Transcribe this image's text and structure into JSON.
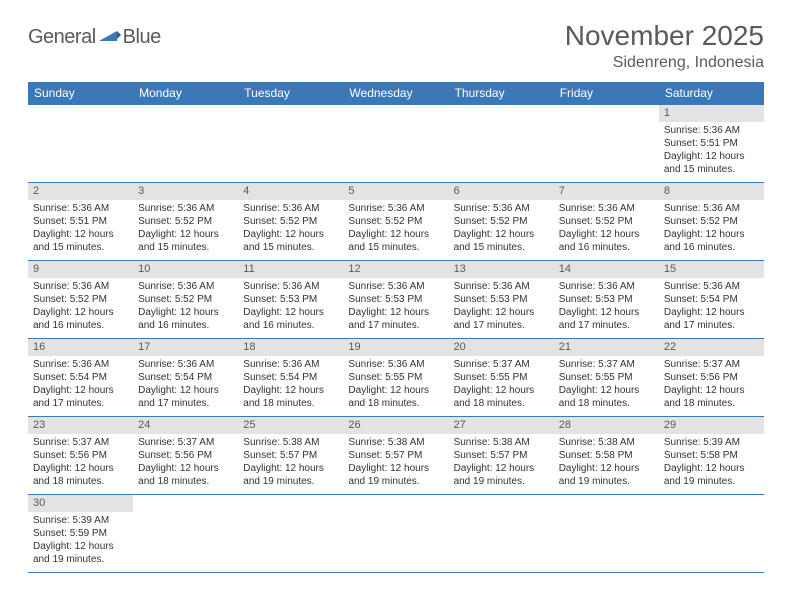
{
  "logo": {
    "text1": "General",
    "text2": "Blue"
  },
  "title": "November 2025",
  "location": "Sidenreng, Indonesia",
  "colors": {
    "header_bg": "#3b78b8",
    "header_text": "#ffffff",
    "daynum_bg": "#e3e3e3",
    "text": "#333333",
    "muted": "#5a5a5a",
    "border": "#3b78b8",
    "background": "#ffffff"
  },
  "typography": {
    "title_fontsize": 28,
    "location_fontsize": 16,
    "weekday_fontsize": 12,
    "daynum_fontsize": 11,
    "body_fontsize": 10
  },
  "calendar": {
    "type": "table",
    "weekdays": [
      "Sunday",
      "Monday",
      "Tuesday",
      "Wednesday",
      "Thursday",
      "Friday",
      "Saturday"
    ],
    "weeks": [
      [
        null,
        null,
        null,
        null,
        null,
        null,
        {
          "n": "1",
          "sunrise": "5:36 AM",
          "sunset": "5:51 PM",
          "daylight": "12 hours and 15 minutes."
        }
      ],
      [
        {
          "n": "2",
          "sunrise": "5:36 AM",
          "sunset": "5:51 PM",
          "daylight": "12 hours and 15 minutes."
        },
        {
          "n": "3",
          "sunrise": "5:36 AM",
          "sunset": "5:52 PM",
          "daylight": "12 hours and 15 minutes."
        },
        {
          "n": "4",
          "sunrise": "5:36 AM",
          "sunset": "5:52 PM",
          "daylight": "12 hours and 15 minutes."
        },
        {
          "n": "5",
          "sunrise": "5:36 AM",
          "sunset": "5:52 PM",
          "daylight": "12 hours and 15 minutes."
        },
        {
          "n": "6",
          "sunrise": "5:36 AM",
          "sunset": "5:52 PM",
          "daylight": "12 hours and 15 minutes."
        },
        {
          "n": "7",
          "sunrise": "5:36 AM",
          "sunset": "5:52 PM",
          "daylight": "12 hours and 16 minutes."
        },
        {
          "n": "8",
          "sunrise": "5:36 AM",
          "sunset": "5:52 PM",
          "daylight": "12 hours and 16 minutes."
        }
      ],
      [
        {
          "n": "9",
          "sunrise": "5:36 AM",
          "sunset": "5:52 PM",
          "daylight": "12 hours and 16 minutes."
        },
        {
          "n": "10",
          "sunrise": "5:36 AM",
          "sunset": "5:52 PM",
          "daylight": "12 hours and 16 minutes."
        },
        {
          "n": "11",
          "sunrise": "5:36 AM",
          "sunset": "5:53 PM",
          "daylight": "12 hours and 16 minutes."
        },
        {
          "n": "12",
          "sunrise": "5:36 AM",
          "sunset": "5:53 PM",
          "daylight": "12 hours and 17 minutes."
        },
        {
          "n": "13",
          "sunrise": "5:36 AM",
          "sunset": "5:53 PM",
          "daylight": "12 hours and 17 minutes."
        },
        {
          "n": "14",
          "sunrise": "5:36 AM",
          "sunset": "5:53 PM",
          "daylight": "12 hours and 17 minutes."
        },
        {
          "n": "15",
          "sunrise": "5:36 AM",
          "sunset": "5:54 PM",
          "daylight": "12 hours and 17 minutes."
        }
      ],
      [
        {
          "n": "16",
          "sunrise": "5:36 AM",
          "sunset": "5:54 PM",
          "daylight": "12 hours and 17 minutes."
        },
        {
          "n": "17",
          "sunrise": "5:36 AM",
          "sunset": "5:54 PM",
          "daylight": "12 hours and 17 minutes."
        },
        {
          "n": "18",
          "sunrise": "5:36 AM",
          "sunset": "5:54 PM",
          "daylight": "12 hours and 18 minutes."
        },
        {
          "n": "19",
          "sunrise": "5:36 AM",
          "sunset": "5:55 PM",
          "daylight": "12 hours and 18 minutes."
        },
        {
          "n": "20",
          "sunrise": "5:37 AM",
          "sunset": "5:55 PM",
          "daylight": "12 hours and 18 minutes."
        },
        {
          "n": "21",
          "sunrise": "5:37 AM",
          "sunset": "5:55 PM",
          "daylight": "12 hours and 18 minutes."
        },
        {
          "n": "22",
          "sunrise": "5:37 AM",
          "sunset": "5:56 PM",
          "daylight": "12 hours and 18 minutes."
        }
      ],
      [
        {
          "n": "23",
          "sunrise": "5:37 AM",
          "sunset": "5:56 PM",
          "daylight": "12 hours and 18 minutes."
        },
        {
          "n": "24",
          "sunrise": "5:37 AM",
          "sunset": "5:56 PM",
          "daylight": "12 hours and 18 minutes."
        },
        {
          "n": "25",
          "sunrise": "5:38 AM",
          "sunset": "5:57 PM",
          "daylight": "12 hours and 19 minutes."
        },
        {
          "n": "26",
          "sunrise": "5:38 AM",
          "sunset": "5:57 PM",
          "daylight": "12 hours and 19 minutes."
        },
        {
          "n": "27",
          "sunrise": "5:38 AM",
          "sunset": "5:57 PM",
          "daylight": "12 hours and 19 minutes."
        },
        {
          "n": "28",
          "sunrise": "5:38 AM",
          "sunset": "5:58 PM",
          "daylight": "12 hours and 19 minutes."
        },
        {
          "n": "29",
          "sunrise": "5:39 AM",
          "sunset": "5:58 PM",
          "daylight": "12 hours and 19 minutes."
        }
      ],
      [
        {
          "n": "30",
          "sunrise": "5:39 AM",
          "sunset": "5:59 PM",
          "daylight": "12 hours and 19 minutes."
        },
        null,
        null,
        null,
        null,
        null,
        null
      ]
    ],
    "labels": {
      "sunrise": "Sunrise:",
      "sunset": "Sunset:",
      "daylight": "Daylight:"
    }
  }
}
